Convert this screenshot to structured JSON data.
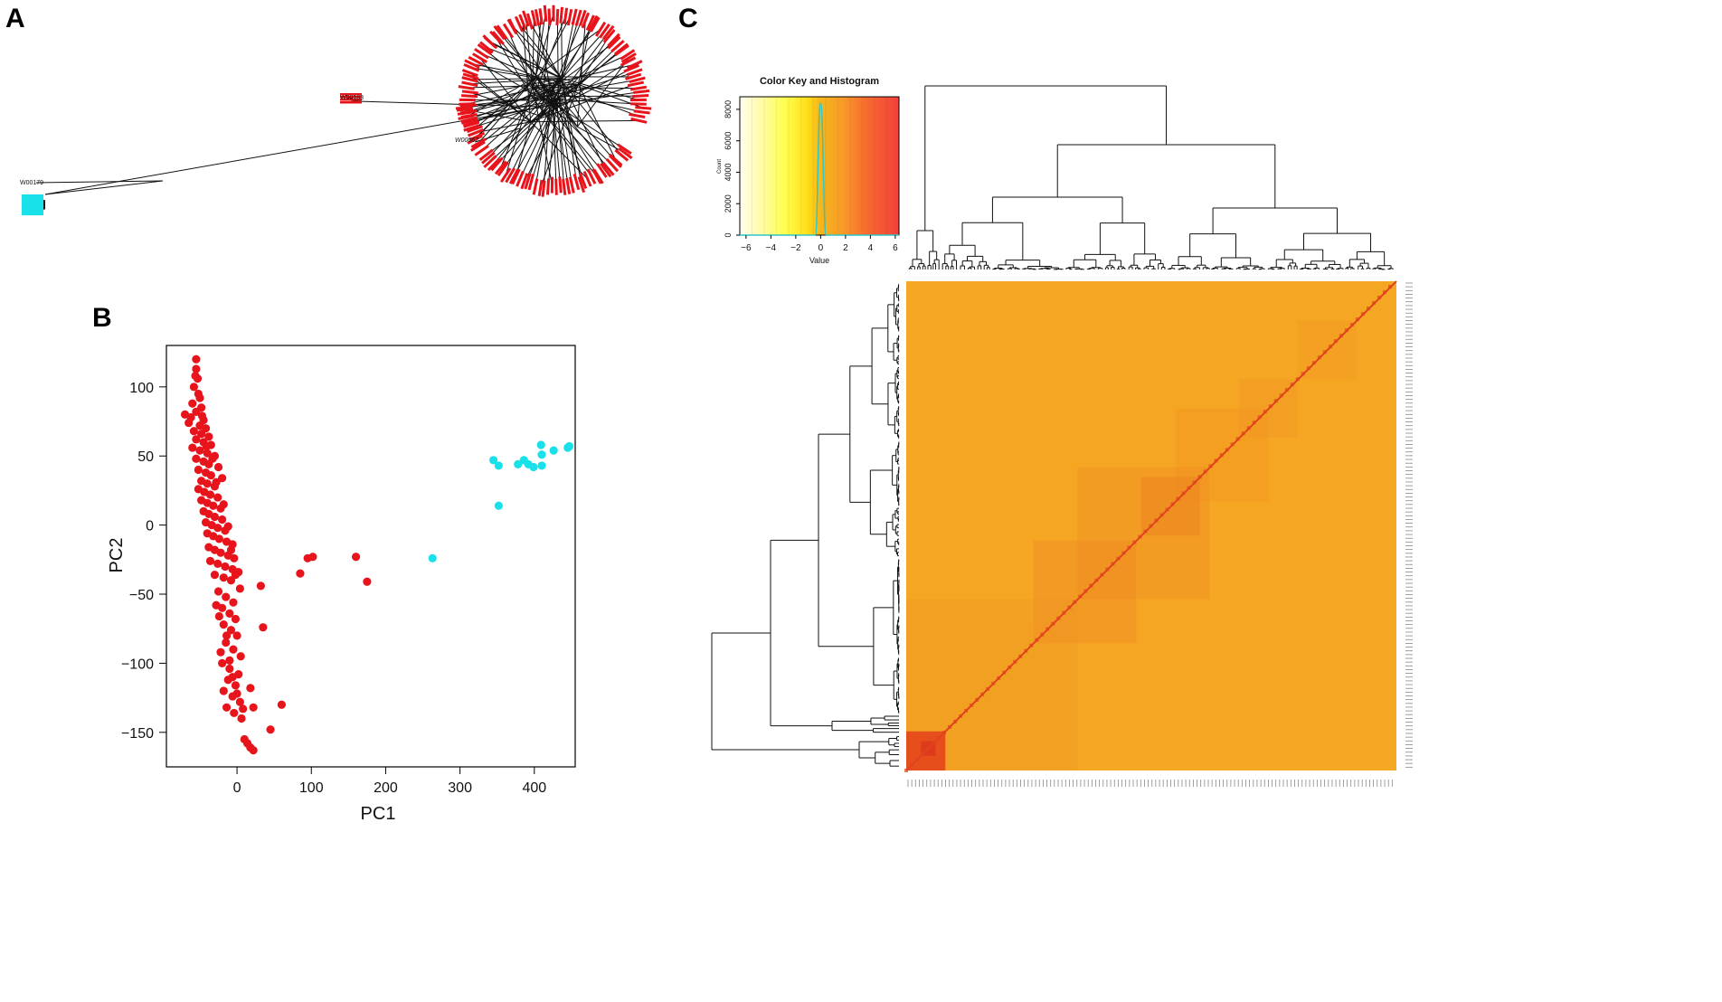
{
  "panels": {
    "a": "A",
    "b": "B",
    "c": "C"
  },
  "tree": {
    "labels": {
      "red_outlier": "W00067",
      "cyan_outlier": "W00179",
      "red_small_cluster": "W00183"
    }
  },
  "colors": {
    "red": "#e8141b",
    "cyan": "#18e1ea",
    "heat_base": "#f5a623",
    "heat_diag": "#e0431e"
  },
  "chart_data": [
    {
      "panel": "A",
      "type": "dendrogram",
      "title": "",
      "groups": [
        {
          "name": "red",
          "color": "#e8141b",
          "approx_count": 260
        },
        {
          "name": "cyan",
          "color": "#18e1ea",
          "approx_count": 14
        }
      ]
    },
    {
      "panel": "B",
      "type": "scatter",
      "title": "",
      "xlabel": "PC1",
      "ylabel": "PC2",
      "xlim": [
        -95,
        455
      ],
      "ylim": [
        -175,
        130
      ],
      "xticks": [
        0,
        100,
        200,
        300,
        400
      ],
      "yticks": [
        -150,
        -100,
        -50,
        0,
        50,
        100
      ],
      "series": [
        {
          "name": "red",
          "color": "#e8141b",
          "points": [
            [
              -55,
              120
            ],
            [
              -55,
              113
            ],
            [
              -53,
              106
            ],
            [
              -58,
              100
            ],
            [
              -52,
              95
            ],
            [
              -50,
              92
            ],
            [
              -60,
              88
            ],
            [
              -48,
              85
            ],
            [
              -55,
              82
            ],
            [
              -70,
              80
            ],
            [
              -62,
              78
            ],
            [
              -45,
              76
            ],
            [
              -65,
              74
            ],
            [
              -50,
              72
            ],
            [
              -42,
              70
            ],
            [
              -58,
              68
            ],
            [
              -48,
              66
            ],
            [
              -38,
              64
            ],
            [
              -55,
              62
            ],
            [
              -45,
              60
            ],
            [
              -35,
              58
            ],
            [
              -60,
              56
            ],
            [
              -50,
              54
            ],
            [
              -40,
              52
            ],
            [
              -30,
              50
            ],
            [
              -55,
              48
            ],
            [
              -45,
              46
            ],
            [
              -38,
              44
            ],
            [
              -25,
              42
            ],
            [
              -52,
              40
            ],
            [
              -42,
              38
            ],
            [
              -35,
              36
            ],
            [
              -20,
              34
            ],
            [
              -48,
              32
            ],
            [
              -40,
              30
            ],
            [
              -30,
              28
            ],
            [
              -52,
              26
            ],
            [
              -44,
              24
            ],
            [
              -36,
              22
            ],
            [
              -26,
              20
            ],
            [
              -48,
              18
            ],
            [
              -40,
              16
            ],
            [
              -32,
              14
            ],
            [
              -22,
              12
            ],
            [
              -45,
              10
            ],
            [
              -38,
              8
            ],
            [
              -30,
              6
            ],
            [
              -20,
              4
            ],
            [
              -42,
              2
            ],
            [
              -34,
              0
            ],
            [
              -26,
              -2
            ],
            [
              -16,
              -4
            ],
            [
              -40,
              -6
            ],
            [
              -32,
              -8
            ],
            [
              -24,
              -10
            ],
            [
              -14,
              -12
            ],
            [
              -6,
              -14
            ],
            [
              -38,
              -16
            ],
            [
              -30,
              -18
            ],
            [
              -22,
              -20
            ],
            [
              -12,
              -22
            ],
            [
              -4,
              -24
            ],
            [
              -36,
              -26
            ],
            [
              -26,
              -28
            ],
            [
              -16,
              -30
            ],
            [
              -6,
              -32
            ],
            [
              2,
              -34
            ],
            [
              -30,
              -36
            ],
            [
              -18,
              -38
            ],
            [
              -8,
              -40
            ],
            [
              32,
              -44
            ],
            [
              -25,
              -48
            ],
            [
              -15,
              -52
            ],
            [
              -5,
              -56
            ],
            [
              -20,
              -60
            ],
            [
              -10,
              -64
            ],
            [
              -2,
              -68
            ],
            [
              -18,
              -72
            ],
            [
              -8,
              -76
            ],
            [
              0,
              -80
            ],
            [
              35,
              -74
            ],
            [
              -15,
              -85
            ],
            [
              -5,
              -90
            ],
            [
              5,
              -95
            ],
            [
              -20,
              -100
            ],
            [
              -10,
              -104
            ],
            [
              2,
              -108
            ],
            [
              -12,
              -112
            ],
            [
              -2,
              -116
            ],
            [
              -18,
              -120
            ],
            [
              -6,
              -124
            ],
            [
              4,
              -128
            ],
            [
              -14,
              -132
            ],
            [
              -4,
              -136
            ],
            [
              6,
              -140
            ],
            [
              18,
              -118
            ],
            [
              22,
              -132
            ],
            [
              60,
              -130
            ],
            [
              45,
              -148
            ],
            [
              10,
              -155
            ],
            [
              14,
              -158
            ],
            [
              18,
              -161
            ],
            [
              22,
              -163
            ],
            [
              85,
              -35
            ],
            [
              95,
              -24
            ],
            [
              102,
              -23
            ],
            [
              160,
              -23
            ],
            [
              175,
              -41
            ],
            [
              -56,
              108
            ],
            [
              -47,
              79
            ],
            [
              -41,
              57
            ],
            [
              -33,
              48
            ],
            [
              -28,
              31
            ],
            [
              -18,
              15
            ],
            [
              -12,
              -1
            ],
            [
              -8,
              -18
            ],
            [
              -2,
              -36
            ],
            [
              4,
              -46
            ],
            [
              -28,
              -58
            ],
            [
              -24,
              -66
            ],
            [
              -14,
              -80
            ],
            [
              -22,
              -92
            ],
            [
              -10,
              -98
            ],
            [
              -6,
              -110
            ],
            [
              0,
              -122
            ],
            [
              8,
              -133
            ]
          ]
        },
        {
          "name": "cyan",
          "color": "#18e1ea",
          "points": [
            [
              345,
              47
            ],
            [
              352,
              43
            ],
            [
              378,
              44
            ],
            [
              386,
              47
            ],
            [
              392,
              44
            ],
            [
              399,
              42
            ],
            [
              410,
              43
            ],
            [
              410,
              51
            ],
            [
              409,
              58
            ],
            [
              426,
              54
            ],
            [
              445,
              56
            ],
            [
              447,
              57
            ],
            [
              352,
              14
            ],
            [
              263,
              -24
            ]
          ]
        }
      ]
    },
    {
      "panel": "C",
      "type": "heatmap",
      "title": "Color Key and Histogram",
      "color_key": {
        "xlabel": "Value",
        "ylabel": "Count",
        "xticks": [
          -6,
          -4,
          -2,
          0,
          2,
          4,
          6
        ],
        "yticks": [
          0,
          2000,
          4000,
          6000,
          8000
        ],
        "xlim": [
          -6.5,
          6.3
        ],
        "ylim": [
          0,
          8800
        ],
        "histogram_peak": {
          "x": 0,
          "count": 8400
        }
      },
      "matrix": {
        "size": 260,
        "diagonal": true
      }
    }
  ]
}
